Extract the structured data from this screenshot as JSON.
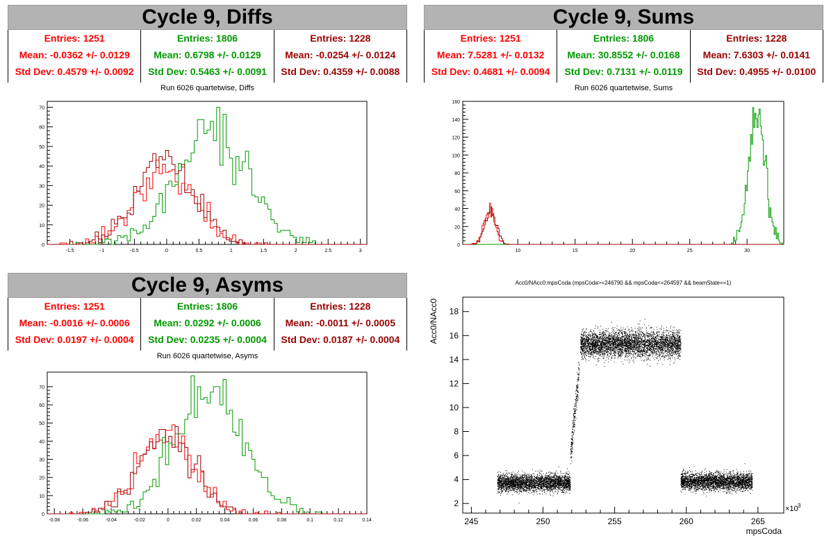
{
  "colors": {
    "red": "#ff0000",
    "green": "#009900",
    "darkred": "#990000",
    "banner": "#b3b3b3"
  },
  "panels": {
    "diffs": {
      "banner": "Cycle 9, Diffs",
      "stats": [
        {
          "entries": "Entries: 1251",
          "mean": "Mean: -0.0362 +/- 0.0129",
          "std": "Std Dev: 0.4579 +/- 0.0092"
        },
        {
          "entries": "Entries: 1806",
          "mean": "Mean: 0.6798 +/- 0.0129",
          "std": "Std Dev: 0.5463 +/- 0.0091"
        },
        {
          "entries": "Entries: 1228",
          "mean": "Mean: -0.0254 +/- 0.0124",
          "std": "Std Dev: 0.4359 +/- 0.0088"
        }
      ],
      "subtitle": "Run 6026 quartetwise, Diffs"
    },
    "sums": {
      "banner": "Cycle 9, Sums",
      "stats": [
        {
          "entries": "Entries: 1251",
          "mean": "Mean: 7.5281 +/- 0.0132",
          "std": "Std Dev: 0.4681 +/- 0.0094"
        },
        {
          "entries": "Entries: 1806",
          "mean": "Mean: 30.8552 +/- 0.0168",
          "std": "Std Dev: 0.7131 +/- 0.0119"
        },
        {
          "entries": "Entries: 1228",
          "mean": "Mean: 7.6303 +/- 0.0141",
          "std": "Std Dev: 0.4955 +/- 0.0100"
        }
      ],
      "subtitle": "Run 6026 quartetwise, Sums"
    },
    "asyms": {
      "banner": "Cycle 9, Asyms",
      "stats": [
        {
          "entries": "Entries: 1251",
          "mean": "Mean: -0.0016 +/- 0.0006",
          "std": "Std Dev: 0.0197 +/- 0.0004"
        },
        {
          "entries": "Entries: 1806",
          "mean": "Mean: 0.0292 +/- 0.0006",
          "std": "Std Dev: 0.0235 +/- 0.0004"
        },
        {
          "entries": "Entries: 1228",
          "mean": "Mean: -0.0011 +/- 0.0005",
          "std": "Std Dev: 0.0187 +/- 0.0004"
        }
      ],
      "subtitle": "Run 6026 quartetwise, Asyms"
    }
  },
  "chart_data": [
    {
      "id": "diffs",
      "type": "histogram",
      "xlim": [
        -1.85,
        3.1
      ],
      "ylim": [
        0,
        73
      ],
      "xticks": [
        -1.5,
        -1,
        -0.5,
        0,
        0.5,
        1,
        1.5,
        2,
        2.5,
        3
      ],
      "xticklabels": [
        "-1.5",
        "-1",
        "-0.5",
        "0",
        "0.5",
        "1",
        "1.5",
        "2",
        "2.5",
        "3"
      ],
      "yticks": [
        0,
        10,
        20,
        30,
        40,
        50,
        60,
        70
      ],
      "series": [
        {
          "color": "red",
          "entries": 1251,
          "mean": -0.0362,
          "std": 0.4579
        },
        {
          "color": "green",
          "entries": 1806,
          "mean": 0.6798,
          "std": 0.5463
        },
        {
          "color": "darkred",
          "entries": 1228,
          "mean": -0.0254,
          "std": 0.4359
        }
      ],
      "bins": 100,
      "binrange": [
        -1.85,
        3.1
      ],
      "peaks": [
        43,
        70,
        48
      ]
    },
    {
      "id": "sums",
      "type": "histogram",
      "xlim": [
        5.2,
        33.2
      ],
      "ylim": [
        0,
        160
      ],
      "xticks": [
        10,
        15,
        20,
        25,
        30
      ],
      "xticklabels": [
        "10",
        "15",
        "20",
        "25",
        "30"
      ],
      "yticks": [
        0,
        20,
        40,
        60,
        80,
        100,
        120,
        140,
        160
      ],
      "series": [
        {
          "color": "red",
          "entries": 1251,
          "mean": 7.5281,
          "std": 0.4681
        },
        {
          "color": "green",
          "entries": 1806,
          "mean": 30.8552,
          "std": 0.7131
        },
        {
          "color": "darkred",
          "entries": 1228,
          "mean": 7.6303,
          "std": 0.4955
        }
      ],
      "bins": 300,
      "binrange": [
        5.2,
        33.2
      ],
      "peaks": [
        46,
        153,
        42
      ]
    },
    {
      "id": "asyms",
      "type": "histogram",
      "xlim": [
        -0.085,
        0.14
      ],
      "ylim": [
        0,
        78
      ],
      "xticks": [
        -0.08,
        -0.06,
        -0.04,
        -0.02,
        0,
        0.02,
        0.04,
        0.06,
        0.08,
        0.1,
        0.12,
        0.14
      ],
      "xticklabels": [
        "-0.08",
        "-0.06",
        "-0.04",
        "-0.02",
        "0",
        "0.02",
        "0.04",
        "0.06",
        "0.08",
        "0.1",
        "0.12",
        "0.14"
      ],
      "yticks": [
        0,
        10,
        20,
        30,
        40,
        50,
        60,
        70
      ],
      "series": [
        {
          "color": "red",
          "entries": 1251,
          "mean": -0.0016,
          "std": 0.0197
        },
        {
          "color": "green",
          "entries": 1806,
          "mean": 0.0292,
          "std": 0.0235
        },
        {
          "color": "darkred",
          "entries": 1228,
          "mean": -0.0011,
          "std": 0.0187
        }
      ],
      "bins": 100,
      "binrange": [
        -0.085,
        0.14
      ],
      "peaks": [
        49,
        76,
        48
      ]
    },
    {
      "id": "scatter",
      "type": "scatter",
      "title": "Acc0/NAcc0:mpsCoda (mpsCoda>=246790 && mpsCoda<=264597 && beamState==1)",
      "xlabel": "mpsCoda",
      "ylabel": "Acc0/NAcc0",
      "xexponent": "×10",
      "xexponent_power": "3",
      "xlim": [
        244.4,
        266.8
      ],
      "ylim": [
        1.2,
        19.2
      ],
      "xticks": [
        245,
        250,
        255,
        260,
        265
      ],
      "xticklabels": [
        "245",
        "250",
        "255",
        "260",
        "265"
      ],
      "yticks": [
        2,
        4,
        6,
        8,
        10,
        12,
        14,
        16,
        18
      ],
      "yticklabels": [
        "2",
        "4",
        "6",
        "8",
        "10",
        "12",
        "14",
        "16",
        "18"
      ],
      "clusters": [
        {
          "x": [
            246.8,
            251.9
          ],
          "ymean": 3.75,
          "ysd": 0.35,
          "n": 3000
        },
        {
          "x": [
            251.9,
            252.5
          ],
          "ymean": 10.5,
          "ysd": 1.2,
          "n": 250
        },
        {
          "x": [
            252.6,
            259.6
          ],
          "ymean": 15.3,
          "ysd": 0.55,
          "n": 4200
        },
        {
          "x": [
            259.6,
            264.6
          ],
          "ymean": 3.85,
          "ysd": 0.35,
          "n": 3000
        }
      ]
    }
  ]
}
